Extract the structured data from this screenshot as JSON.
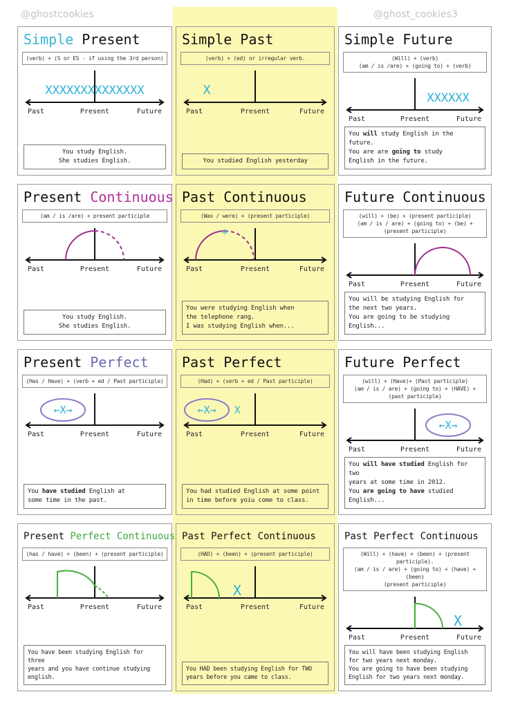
{
  "timeline_labels": {
    "past": "Past",
    "present": "Present",
    "future": "Future"
  },
  "colors": {
    "simple": "#35b4d4",
    "continuous": "#b0309a",
    "perfect": "#6a6aae",
    "perfect_continuous": "#3fa83f",
    "x_mark": "#2ab0d8",
    "arc": "#9c2f8f",
    "ellipse": "#8a7cc8",
    "green": "#46b03a",
    "highlight": "#fbf8b4"
  },
  "watermarks": [
    "@ghostcookies",
    "@ghost_cookies3"
  ],
  "cards": [
    {
      "title": [
        {
          "t": "Simple",
          "c": "simple"
        },
        {
          "t": " Present"
        }
      ],
      "formula": [
        "(verb) + (S or ES - if using the 3rd person)"
      ],
      "diagram": "simple-present",
      "marks": "XXXXXXXXXXXXXX",
      "example": [
        [
          {
            "t": "You study English."
          }
        ],
        [
          {
            "t": "She studies English."
          }
        ]
      ],
      "align": "center"
    },
    {
      "title": [
        {
          "t": "Simple Past"
        }
      ],
      "formula": [
        "(verb) + (ed) or irregular verb."
      ],
      "diagram": "simple-past",
      "marks": "X",
      "example": [
        [
          {
            "t": "You studied English yesterday"
          }
        ]
      ],
      "align": "center"
    },
    {
      "title": [
        {
          "t": "Simple Future"
        }
      ],
      "formula": [
        "(Will) + (verb)",
        "(am / is /are) + (going to) + (verb)"
      ],
      "diagram": "simple-future",
      "marks": "XXXXXX",
      "example": [
        [
          {
            "t": "You "
          },
          {
            "t": "will",
            "b": 1
          },
          {
            "t": " study English in the future."
          }
        ],
        [
          {
            "t": "You are are "
          },
          {
            "t": "going to",
            "b": 1
          },
          {
            "t": " study"
          }
        ],
        [
          {
            "t": "English in the future."
          }
        ]
      ]
    },
    {
      "title": [
        {
          "t": "Present "
        },
        {
          "t": "Continuous",
          "c": "continuous"
        }
      ],
      "formula": [
        "(am / is /are) + present participle"
      ],
      "diagram": "present-continuous",
      "example": [
        [
          {
            "t": "You study English."
          }
        ],
        [
          {
            "t": "She studies English."
          }
        ]
      ],
      "align": "center"
    },
    {
      "title": [
        {
          "t": "Past Continuous"
        }
      ],
      "formula": [
        "(Was / were) + (present participle)"
      ],
      "diagram": "past-continuous",
      "marks": "*",
      "example": [
        [
          {
            "t": "You were studying English when"
          }
        ],
        [
          {
            "t": "the telephone rang."
          }
        ],
        [
          {
            "t": "I was studying English when..."
          }
        ]
      ]
    },
    {
      "title": [
        {
          "t": "Future Continuous"
        }
      ],
      "formula": [
        "(will) + (be) + (present participle)",
        "(am / is / are) + (going to) + (be) + (present participle)"
      ],
      "diagram": "future-continuous",
      "example": [
        [
          {
            "t": "You will be studying English for"
          }
        ],
        [
          {
            "t": "the next two years."
          }
        ],
        [
          {
            "t": "You are going to be studying English..."
          }
        ]
      ]
    },
    {
      "title": [
        {
          "t": "Present "
        },
        {
          "t": "Perfect",
          "c": "perfect"
        }
      ],
      "formula": [
        "(Has / Have) + (verb + ed / Past participle)"
      ],
      "diagram": "present-perfect",
      "marks": "←X→",
      "example": [
        [
          {
            "t": "You "
          },
          {
            "t": "have studied",
            "b": 1
          },
          {
            "t": " English at"
          }
        ],
        [
          {
            "t": "some time in the past."
          }
        ]
      ]
    },
    {
      "title": [
        {
          "t": "Past Perfect"
        }
      ],
      "formula": [
        "(Had) + (verb + ed / Past participle)"
      ],
      "diagram": "past-perfect",
      "marks": "←X→",
      "example": [
        [
          {
            "t": "You had studied English at some point"
          }
        ],
        [
          {
            "t": "in time before yoiu come to class."
          }
        ]
      ]
    },
    {
      "title": [
        {
          "t": "Future Perfect"
        }
      ],
      "formula": [
        "(will) + (Have)+ (Past participle)",
        "(am / is / are) + (going to) + (HAVE) + (past participle)"
      ],
      "diagram": "future-perfect",
      "marks": "←X→",
      "example": [
        [
          {
            "t": "You "
          },
          {
            "t": "will have studied",
            "b": 1
          },
          {
            "t": " English for two"
          }
        ],
        [
          {
            "t": "years at some time in 2012."
          }
        ],
        [
          {
            "t": "You "
          },
          {
            "t": "are going to have",
            "b": 1
          },
          {
            "t": " studied English..."
          }
        ]
      ]
    },
    {
      "title": [
        {
          "t": "Present "
        },
        {
          "t": "Perfect Continuous",
          "c": "perfect_continuous"
        }
      ],
      "formula": [
        "(has / have) + (been) + (present participle)"
      ],
      "diagram": "present-perfect-continuous",
      "example": [
        [
          {
            "t": "You have been studying English for three"
          }
        ],
        [
          {
            "t": "years and you have continue studying"
          }
        ],
        [
          {
            "t": "english."
          }
        ]
      ]
    },
    {
      "title": [
        {
          "t": "Past Perfect Continuous"
        }
      ],
      "formula": [
        "(HAD) + (been) + (present participle)"
      ],
      "diagram": "past-perfect-continuous",
      "marks": "X",
      "example": [
        [
          {
            "t": "You HAD been studying English for TWO"
          }
        ],
        [
          {
            "t": "years before you came to class."
          }
        ]
      ]
    },
    {
      "title": [
        {
          "t": "Past Perfect Continuous"
        }
      ],
      "formula": [
        "(Will) + (have) + (been) + (present participle).",
        "(am / is / are) + (going to) + (have) + (been)",
        "(present participle)"
      ],
      "diagram": "future-perfect-continuous",
      "marks": "X",
      "example": [
        [
          {
            "t": "You will have been studying English"
          }
        ],
        [
          {
            "t": "for two years next monday."
          }
        ],
        [
          {
            "t": "You are going to have been studying"
          }
        ],
        [
          {
            "t": "English for two years next monday."
          }
        ]
      ]
    }
  ]
}
